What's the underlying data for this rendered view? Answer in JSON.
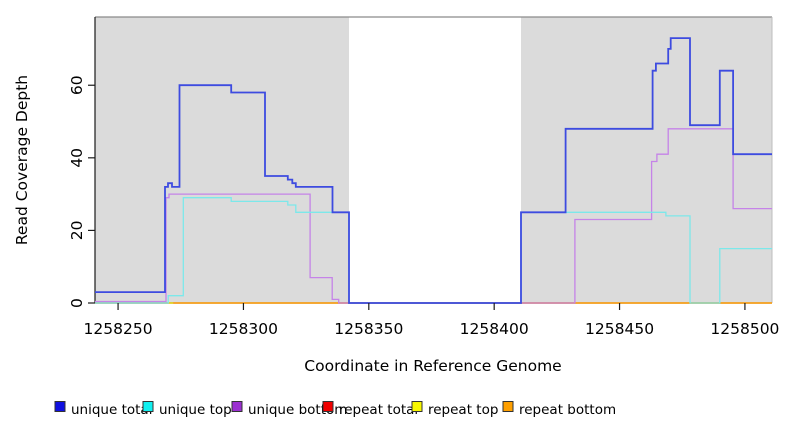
{
  "chart_data": {
    "type": "line",
    "subtype": "step-after-coverage-plot",
    "title": "",
    "xlabel": "Coordinate in Reference Genome",
    "ylabel": "Read Coverage Depth",
    "xlim": [
      1258240.8,
      1258510.8
    ],
    "ylim": [
      0,
      78.8
    ],
    "x_ticks": [
      1258250,
      1258300,
      1258350,
      1258400,
      1258450,
      1258500
    ],
    "y_ticks": [
      0,
      20,
      40,
      60
    ],
    "grid": false,
    "legend_position": "bottom",
    "plot_bg_color": "#ffffff",
    "band_color": "#DBDBDB",
    "bands": [
      {
        "x0": 1258240.8,
        "x1": 1258342.1
      },
      {
        "x0": 1258410.7,
        "x1": 1258510.8
      }
    ],
    "series": [
      {
        "name": "repeat total",
        "color": "#E03030",
        "width": 1.2,
        "steps": [
          [
            1258240.8,
            0
          ],
          [
            1258510.8,
            0
          ]
        ]
      },
      {
        "name": "repeat top",
        "color": "#F5F500",
        "width": 1.2,
        "steps": [
          [
            1258240.8,
            0
          ],
          [
            1258510.8,
            0
          ]
        ]
      },
      {
        "name": "repeat bottom",
        "color": "#FFA520",
        "width": 1.4,
        "steps": [
          [
            1258272,
            0
          ],
          [
            1258510.8,
            0
          ]
        ]
      },
      {
        "name": "unique bottom",
        "color": "#C583E8",
        "width": 1.3,
        "steps": [
          [
            1258240.8,
            0.4
          ],
          [
            1258269.1,
            29
          ],
          [
            1258270.3,
            30
          ],
          [
            1258326.6,
            7
          ],
          [
            1258335.4,
            1
          ],
          [
            1258338,
            0
          ],
          [
            1258432.2,
            23
          ],
          [
            1258462.8,
            39
          ],
          [
            1258464.9,
            41
          ],
          [
            1258469.4,
            48
          ],
          [
            1258495.3,
            26
          ],
          [
            1258510.8,
            26
          ]
        ]
      },
      {
        "name": "unique top",
        "color": "#7CE8EA",
        "width": 1.3,
        "steps": [
          [
            1258240.8,
            0
          ],
          [
            1258270,
            2
          ],
          [
            1258276,
            29
          ],
          [
            1258295.1,
            28
          ],
          [
            1258317.7,
            27
          ],
          [
            1258320.9,
            25
          ],
          [
            1258342.1,
            0
          ],
          [
            1258410.7,
            25
          ],
          [
            1258468.5,
            24
          ],
          [
            1258478.1,
            0
          ],
          [
            1258490,
            15
          ],
          [
            1258510.8,
            15
          ]
        ]
      },
      {
        "name": "unique total",
        "color": "#3D4BE0",
        "width": 1.8,
        "steps": [
          [
            1258240.8,
            3
          ],
          [
            1258268.7,
            32
          ],
          [
            1258269.9,
            33
          ],
          [
            1258271.5,
            32
          ],
          [
            1258274.5,
            60
          ],
          [
            1258295.1,
            58
          ],
          [
            1258308.6,
            35
          ],
          [
            1258317.7,
            34
          ],
          [
            1258319.5,
            33
          ],
          [
            1258320.9,
            32
          ],
          [
            1258335.5,
            25
          ],
          [
            1258342.1,
            0
          ],
          [
            1258410.7,
            25
          ],
          [
            1258428.5,
            48
          ],
          [
            1258463.2,
            64
          ],
          [
            1258464.5,
            66
          ],
          [
            1258469.4,
            70
          ],
          [
            1258470.4,
            73
          ],
          [
            1258478.1,
            49
          ],
          [
            1258490,
            64
          ],
          [
            1258495.3,
            41
          ],
          [
            1258510.8,
            41
          ]
        ]
      }
    ],
    "legend": [
      {
        "label": "unique total",
        "color": "#1010E0"
      },
      {
        "label": "unique top",
        "color": "#10F0F0"
      },
      {
        "label": "unique bottom",
        "color": "#9B30D0"
      },
      {
        "label": "repeat total",
        "color": "#F00000"
      },
      {
        "label": "repeat top",
        "color": "#F8F800"
      },
      {
        "label": "repeat bottom",
        "color": "#FFA000"
      }
    ]
  }
}
